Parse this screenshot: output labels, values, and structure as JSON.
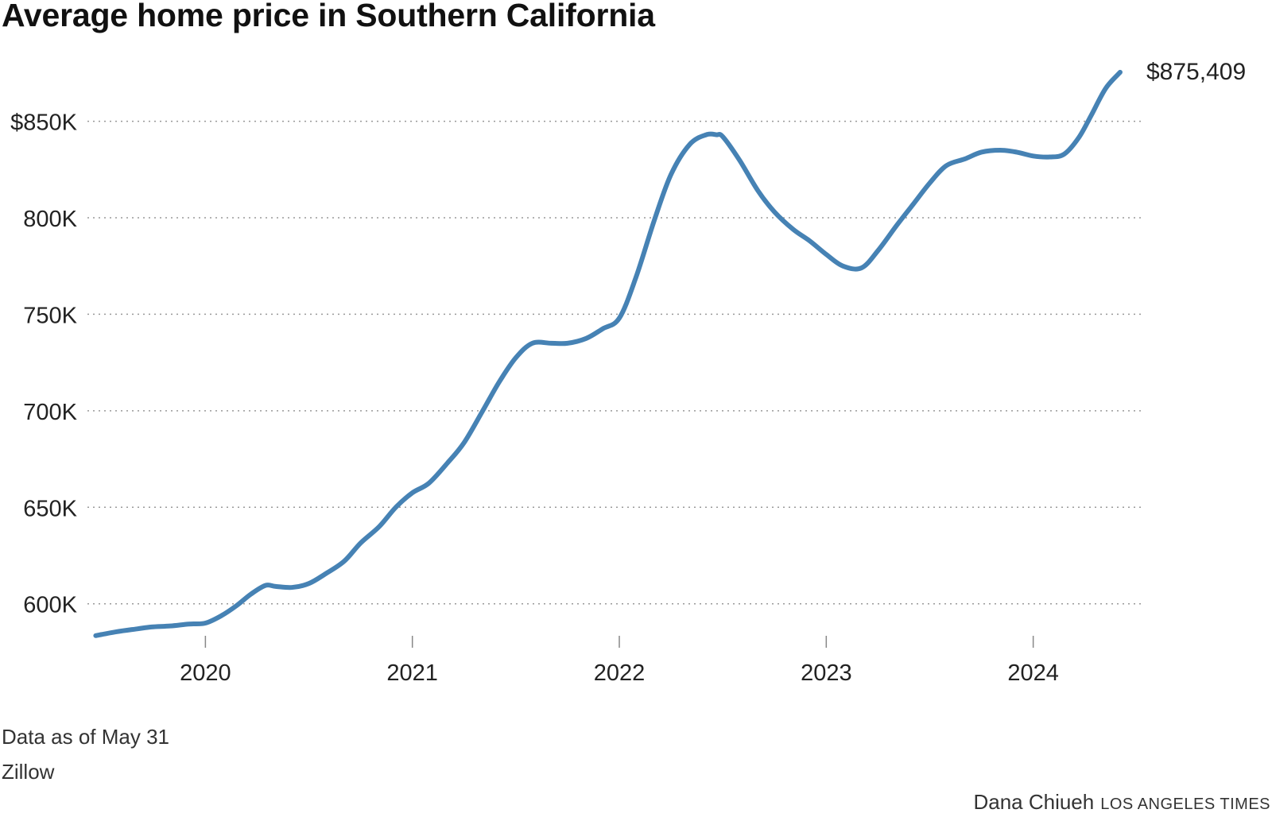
{
  "title": "Average home price in Southern California",
  "note": "Data as of May 31",
  "source": "Zillow",
  "byline": "Dana Chiueh",
  "outlet": "LOS ANGELES TIMES",
  "colors": {
    "line": "#4682b4",
    "grid": "#999999",
    "text": "#222222"
  },
  "chart_data": {
    "type": "line",
    "title": "Average home price in Southern California",
    "xlabel": "",
    "ylabel": "",
    "ylim": [
      583000,
      877000
    ],
    "xlim": [
      2019.43,
      2024.52
    ],
    "grid": true,
    "y_ticks": [
      {
        "value": 850000,
        "label": "$850K"
      },
      {
        "value": 800000,
        "label": "800K"
      },
      {
        "value": 750000,
        "label": "750K"
      },
      {
        "value": 700000,
        "label": "700K"
      },
      {
        "value": 650000,
        "label": "650K"
      },
      {
        "value": 600000,
        "label": "600K"
      }
    ],
    "x_ticks": [
      {
        "value": 2020,
        "label": "2020"
      },
      {
        "value": 2021,
        "label": "2021"
      },
      {
        "value": 2022,
        "label": "2022"
      },
      {
        "value": 2023,
        "label": "2023"
      },
      {
        "value": 2024,
        "label": "2024"
      }
    ],
    "end_label": "$875,409",
    "series": [
      {
        "name": "Average home price",
        "x": [
          2019.47,
          2019.57,
          2019.67,
          2019.74,
          2019.83,
          2019.92,
          2020.0,
          2020.08,
          2020.15,
          2020.22,
          2020.29,
          2020.34,
          2020.42,
          2020.5,
          2020.58,
          2020.67,
          2020.75,
          2020.84,
          2020.92,
          2021.0,
          2021.08,
          2021.17,
          2021.25,
          2021.34,
          2021.42,
          2021.5,
          2021.58,
          2021.67,
          2021.75,
          2021.84,
          2021.92,
          2022.0,
          2022.08,
          2022.17,
          2022.25,
          2022.34,
          2022.42,
          2022.47,
          2022.5,
          2022.58,
          2022.67,
          2022.75,
          2022.84,
          2022.92,
          2023.0,
          2023.08,
          2023.17,
          2023.25,
          2023.34,
          2023.42,
          2023.5,
          2023.58,
          2023.67,
          2023.75,
          2023.84,
          2023.92,
          2024.0,
          2024.08,
          2024.15,
          2024.22,
          2024.28,
          2024.35,
          2024.42
        ],
        "values": [
          583500,
          585500,
          587000,
          588000,
          588500,
          589500,
          590000,
          594000,
          599000,
          605000,
          609500,
          609000,
          608500,
          610500,
          615500,
          622000,
          631500,
          640000,
          650000,
          657500,
          662500,
          673000,
          683500,
          700000,
          715000,
          727500,
          735000,
          735000,
          735000,
          737500,
          742500,
          748000,
          769000,
          799000,
          822500,
          838000,
          843000,
          843000,
          842000,
          830000,
          814000,
          803000,
          794000,
          788000,
          781000,
          775000,
          774000,
          783000,
          796000,
          807000,
          818000,
          827000,
          830500,
          834000,
          835000,
          834000,
          832000,
          831500,
          833000,
          841500,
          853000,
          867000,
          875409
        ]
      }
    ]
  }
}
